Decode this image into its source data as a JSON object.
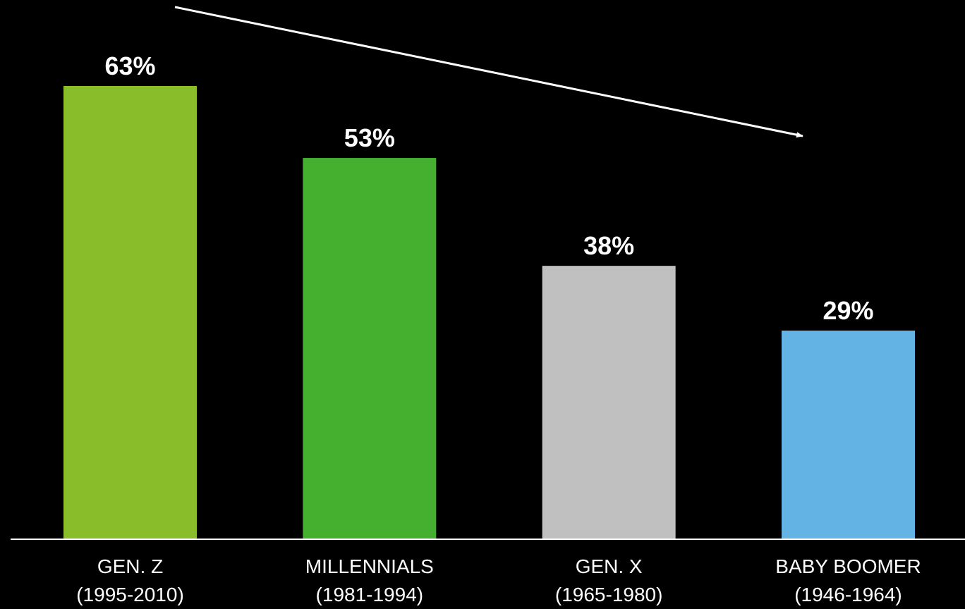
{
  "chart_data": {
    "type": "bar",
    "title": "",
    "xlabel": "",
    "ylabel": "",
    "ylim": [
      0,
      63
    ],
    "grid": false,
    "legend": "none",
    "categories": [
      {
        "name": "GEN. Z",
        "range": "(1995-2010)"
      },
      {
        "name": "MILLENNIALS",
        "range": "(1981-1994)"
      },
      {
        "name": "GEN. X",
        "range": "(1965-1980)"
      },
      {
        "name": "BABY BOOMER",
        "range": "(1946-1964)"
      }
    ],
    "values": [
      63,
      53,
      38,
      29
    ],
    "value_labels": [
      "63%",
      "53%",
      "38%",
      "29%"
    ],
    "colors": [
      "#8abd2a",
      "#45b02f",
      "#c0c0c0",
      "#63b4e4"
    ],
    "annotations": [
      {
        "type": "arrow",
        "direction": "downward trend",
        "color": "#ffffff"
      }
    ]
  }
}
